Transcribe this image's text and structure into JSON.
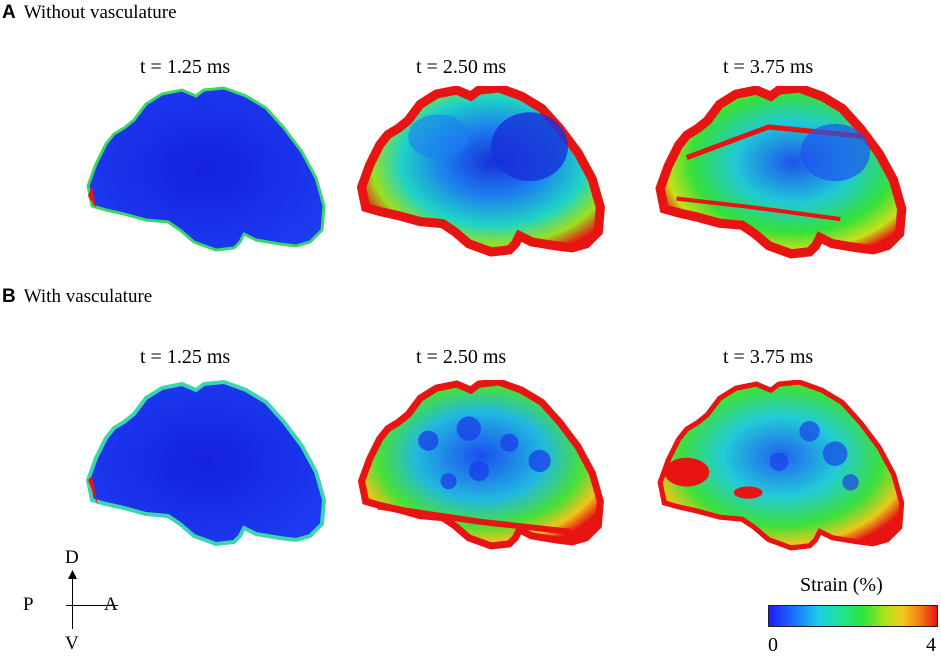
{
  "panels": [
    {
      "letter": "A",
      "title": "Without vasculature",
      "times": [
        "t = 1.25 ms",
        "t = 2.50 ms",
        "t = 3.75 ms"
      ]
    },
    {
      "letter": "B",
      "title": "With vasculature",
      "times": [
        "t = 1.25 ms",
        "t = 2.50 ms",
        "t = 3.75 ms"
      ]
    }
  ],
  "orientation": {
    "up": "D",
    "down": "V",
    "left": "P",
    "right": "A"
  },
  "colorbar": {
    "title": "Strain (%)",
    "min": "0",
    "max": "4"
  },
  "colors": {
    "low": "#1b1bff",
    "mid": "#2ee33a",
    "high": "#e81414"
  }
}
